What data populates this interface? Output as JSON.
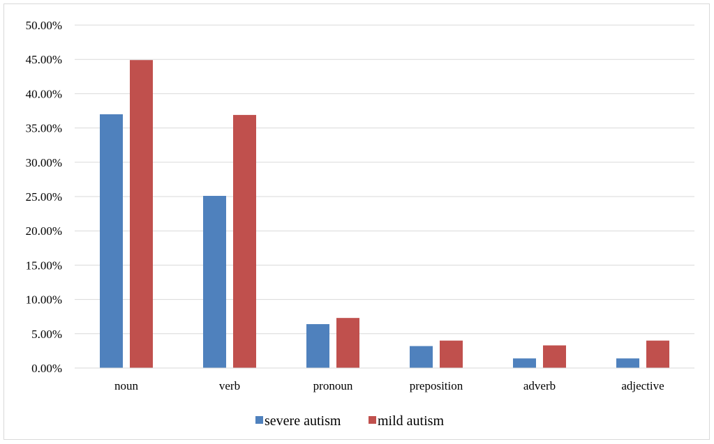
{
  "chart_data": {
    "type": "bar",
    "categories": [
      "noun",
      "verb",
      "pronoun",
      "preposition",
      "adverb",
      "adjective"
    ],
    "series": [
      {
        "name": "severe autism",
        "color": "#4f81bd",
        "values": [
          0.37,
          0.251,
          0.064,
          0.032,
          0.014,
          0.014
        ]
      },
      {
        "name": "mild autism",
        "color": "#c0504d",
        "values": [
          0.449,
          0.369,
          0.073,
          0.04,
          0.033,
          0.04
        ]
      }
    ],
    "ylim": [
      0,
      0.5
    ],
    "yticks": [
      0,
      0.05,
      0.1,
      0.15,
      0.2,
      0.25,
      0.3,
      0.35,
      0.4,
      0.45,
      0.5
    ],
    "ytick_labels": [
      "0.00%",
      "5.00%",
      "10.00%",
      "15.00%",
      "20.00%",
      "25.00%",
      "30.00%",
      "35.00%",
      "40.00%",
      "45.00%",
      "50.00%"
    ],
    "title": "",
    "xlabel": "",
    "ylabel": "",
    "grid": true,
    "legend_position": "bottom",
    "gridline_color": "#d9d9d9"
  }
}
